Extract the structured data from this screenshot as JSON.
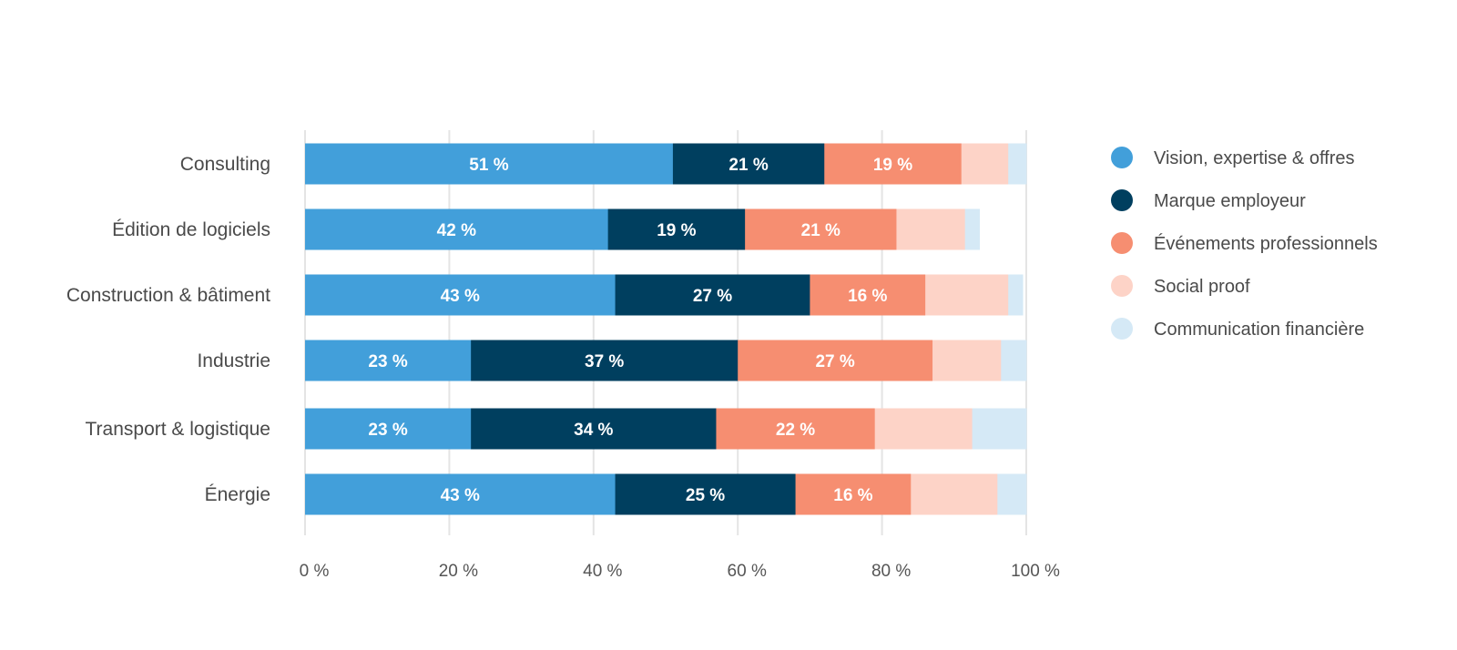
{
  "chart_data": {
    "type": "bar",
    "orientation": "horizontal",
    "stacked": true,
    "categories": [
      "Consulting",
      "Édition de logiciels",
      "Construction & bâtiment",
      "Industrie",
      "Transport & logistique",
      "Énergie"
    ],
    "series": [
      {
        "name": "Vision, expertise & offres",
        "color": "#429fda",
        "values": [
          51,
          42,
          43,
          23,
          23,
          43
        ],
        "labels": [
          "51 %",
          "42 %",
          "43 %",
          "23 %",
          "23 %",
          "43 %"
        ]
      },
      {
        "name": "Marque employeur",
        "color": "#003f5f",
        "values": [
          21,
          19,
          27,
          37,
          34,
          25
        ],
        "labels": [
          "21 %",
          "19 %",
          "27 %",
          "37 %",
          "34 %",
          "25 %"
        ]
      },
      {
        "name": "Événements professionnels",
        "color": "#f68e71",
        "values": [
          19,
          21,
          16,
          27,
          22,
          16
        ],
        "labels": [
          "19 %",
          "21 %",
          "16 %",
          "27 %",
          "22 %",
          "16 %"
        ]
      },
      {
        "name": "Social proof",
        "color": "#fdd3c7",
        "values": [
          6.5,
          9.5,
          11.5,
          9.5,
          13.5,
          12
        ],
        "labels": [
          "",
          "",
          "",
          "",
          "",
          ""
        ]
      },
      {
        "name": "Communication financière",
        "color": "#d5e9f6",
        "values": [
          4,
          2,
          2,
          4,
          7.5,
          5
        ],
        "labels": [
          "",
          "",
          "",
          "",
          "",
          ""
        ]
      }
    ],
    "xlim": [
      0,
      100
    ],
    "xticks": [
      {
        "value": 0,
        "label": "0 %"
      },
      {
        "value": 20,
        "label": "20 %"
      },
      {
        "value": 40,
        "label": "40 %"
      },
      {
        "value": 60,
        "label": "60 %"
      },
      {
        "value": 80,
        "label": "80 %"
      },
      {
        "value": 100,
        "label": "100 %"
      }
    ],
    "title": "",
    "xlabel": "",
    "ylabel": "",
    "grid": true,
    "legend_position": "right"
  }
}
